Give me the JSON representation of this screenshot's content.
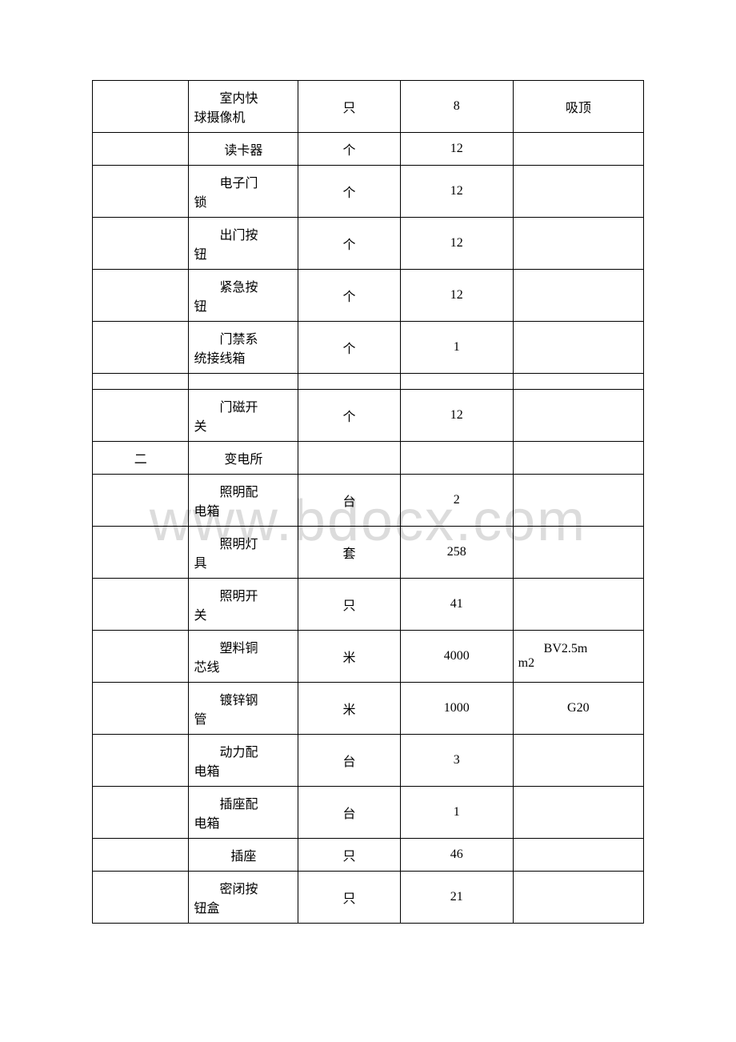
{
  "watermark": "www.bdocx.com",
  "table": {
    "columns": {
      "col1_width": 118,
      "col2_width": 134,
      "col3_width": 125,
      "col4_width": 138,
      "col5_width": 160
    },
    "border_color": "#000000",
    "background_color": "#ffffff",
    "font_size": 16,
    "text_color": "#000000",
    "watermark_color": "#dcdcdc",
    "rows": [
      {
        "col1": "",
        "col2": "室内快球摄像机",
        "col3": "只",
        "col4": "8",
        "col5": "吸顶",
        "col5_center": true
      },
      {
        "col1": "",
        "col2": "读卡器",
        "col3": "个",
        "col4": "12",
        "col5": "",
        "short": true,
        "col2_center": true
      },
      {
        "col1": "",
        "col2": "电子门锁",
        "col3": "个",
        "col4": "12",
        "col5": ""
      },
      {
        "col1": "",
        "col2": "出门按钮",
        "col3": "个",
        "col4": "12",
        "col5": ""
      },
      {
        "col1": "",
        "col2": "紧急按钮",
        "col3": "个",
        "col4": "12",
        "col5": ""
      },
      {
        "col1": "",
        "col2": "门禁系统接线箱",
        "col3": "个",
        "col4": "1",
        "col5": ""
      },
      {
        "col1": "",
        "col2": "",
        "col3": "",
        "col4": "",
        "col5": "",
        "empty": true
      },
      {
        "col1": "",
        "col2": "门磁开关",
        "col3": "个",
        "col4": "12",
        "col5": ""
      },
      {
        "col1": "二",
        "col2": "变电所",
        "col3": "",
        "col4": "",
        "col5": "",
        "short": true,
        "col2_center": true
      },
      {
        "col1": "",
        "col2": "照明配电箱",
        "col3": "台",
        "col4": "2",
        "col5": ""
      },
      {
        "col1": "",
        "col2": "照明灯具",
        "col3": "套",
        "col4": "258",
        "col5": ""
      },
      {
        "col1": "",
        "col2": "照明开关",
        "col3": "只",
        "col4": "41",
        "col5": ""
      },
      {
        "col1": "",
        "col2": "塑料铜芯线",
        "col3": "米",
        "col4": "4000",
        "col5": "BV2.5mm2"
      },
      {
        "col1": "",
        "col2": "镀锌钢管",
        "col3": "米",
        "col4": "1000",
        "col5": "G20",
        "col5_center": true
      },
      {
        "col1": "",
        "col2": "动力配电箱",
        "col3": "台",
        "col4": "3",
        "col5": ""
      },
      {
        "col1": "",
        "col2": "插座配电箱",
        "col3": "台",
        "col4": "1",
        "col5": ""
      },
      {
        "col1": "",
        "col2": "插座",
        "col3": "只",
        "col4": "46",
        "col5": "",
        "short": true,
        "col2_center": true
      },
      {
        "col1": "",
        "col2": "密闭按钮盒",
        "col3": "只",
        "col4": "21",
        "col5": ""
      }
    ]
  }
}
